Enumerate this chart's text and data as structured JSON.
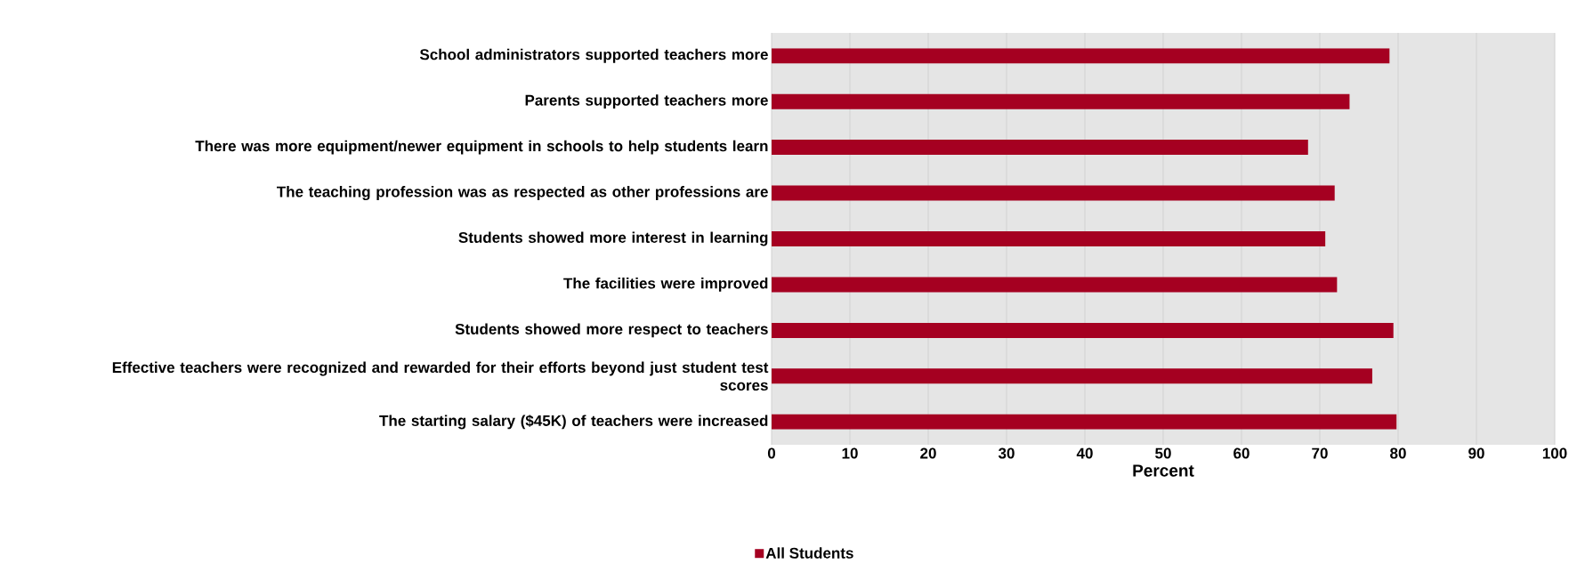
{
  "chart_data": {
    "type": "bar",
    "orientation": "horizontal",
    "xlabel": "Percent",
    "categories": [
      "School administrators supported teachers more",
      "Parents supported teachers more",
      "There was more equipment/newer equipment in schools to help students learn",
      "The teaching profession was as respected as other professions are",
      "Students showed more interest in learning",
      "The facilities were improved",
      "Students showed more respect to teachers",
      "Effective teachers were recognized and rewarded for their efforts beyond just student test scores",
      "The starting salary ($45K) of teachers were increased"
    ],
    "series": [
      {
        "name": "All Students",
        "color": "#a50021",
        "values": [
          78.9,
          73.8,
          68.5,
          71.9,
          70.7,
          72.2,
          79.4,
          76.7,
          79.8
        ]
      }
    ],
    "xlim": [
      0,
      100
    ],
    "xticks": [
      0,
      10,
      20,
      30,
      40,
      50,
      60,
      70,
      80,
      90,
      100
    ],
    "grid": "x",
    "legend": "bottom"
  }
}
